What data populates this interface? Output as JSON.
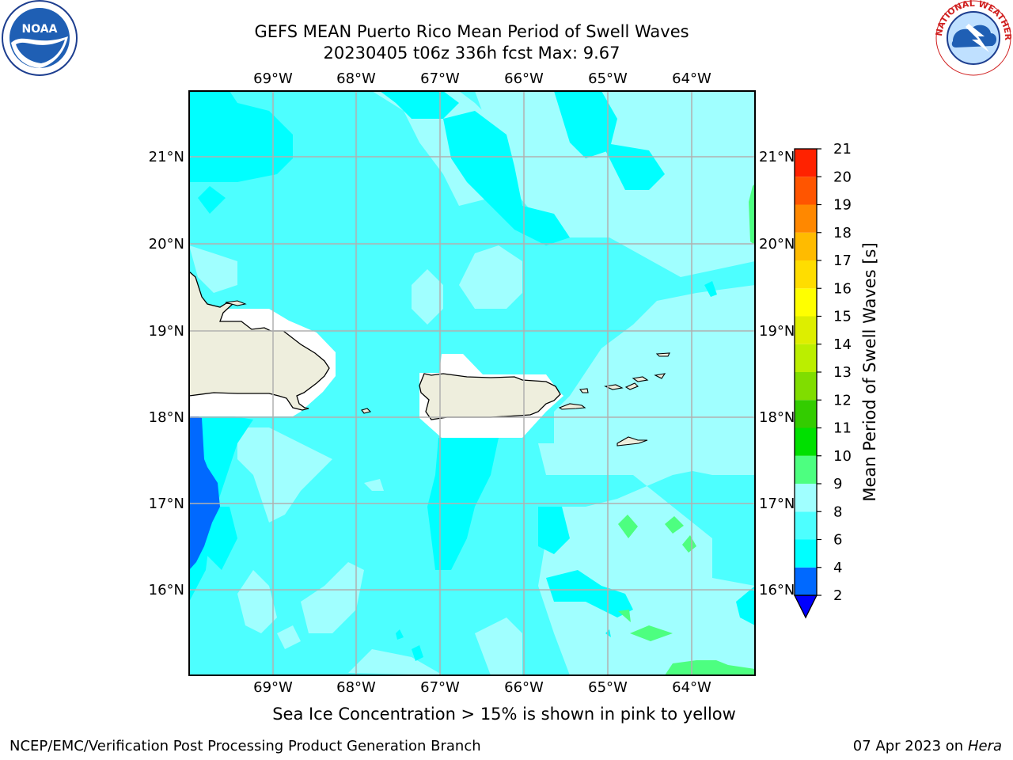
{
  "header": {
    "title_line1": "GEFS MEAN Puerto Rico Mean Period of Swell Waves",
    "title_line2": "20230405 t06z 336h fcst   Max: 9.67"
  },
  "logos": {
    "left": {
      "text": "NOAA",
      "ring_text": "NATIONAL OCEANIC AND ATMOSPHERIC ADMINISTRATION • U.S. DEPARTMENT OF COMMERCE"
    },
    "right": {
      "ring_text": "NATIONAL WEATHER SERVICE"
    }
  },
  "map": {
    "lon_labels": [
      "69°W",
      "68°W",
      "67°W",
      "66°W",
      "65°W",
      "64°W"
    ],
    "lat_labels": [
      "21°N",
      "20°N",
      "19°N",
      "18°N",
      "17°N",
      "16°N"
    ],
    "colors": {
      "land": "#eeeedd",
      "ice_mask": "#ffffff",
      "grid": "#b0b0b0",
      "coast": "#000000"
    }
  },
  "colorbar": {
    "label": "Mean Period of Swell Waves [s]",
    "ticks": [
      "2",
      "4",
      "6",
      "8",
      "9",
      "10",
      "11",
      "12",
      "13",
      "14",
      "15",
      "16",
      "17",
      "18",
      "19",
      "20",
      "21"
    ],
    "colors": [
      "#0069ff",
      "#00ffff",
      "#4dffff",
      "#a0ffff",
      "#4dff80",
      "#00e000",
      "#33cc00",
      "#80dd00",
      "#bbee00",
      "#ddee00",
      "#ffff00",
      "#ffdd00",
      "#ffbb00",
      "#ff8800",
      "#ff5500",
      "#ff2200",
      "#ff0000"
    ],
    "under_color": "#0000ff"
  },
  "captions": {
    "sea_ice": "Sea Ice Concentration > 15% is shown in pink to yellow"
  },
  "footer": {
    "left": "NCEP/EMC/Verification Post Processing Product Generation Branch",
    "right_prefix": "07 Apr 2023 on ",
    "right_italic": "Hera"
  }
}
